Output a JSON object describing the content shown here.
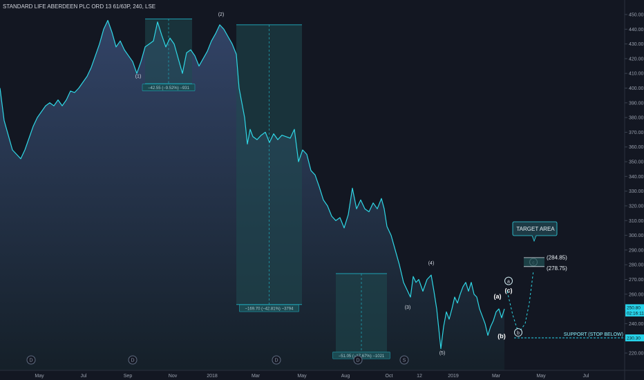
{
  "header": {
    "title": "STANDARD LIFE ABERDEEN PLC ORD 13 61/63P, 240, LSE"
  },
  "colors": {
    "background": "#131722",
    "line": "#2fd8e6",
    "area_top": "#2b3a55",
    "area_bottom": "#16202b",
    "box_fill": "#1f4b50",
    "box_border": "#1fa3b4",
    "price_tag": "#27d3ea",
    "support": "#27d3ea"
  },
  "chart_data": {
    "type": "area",
    "y_axis": {
      "ticks": [
        220,
        230,
        240,
        250,
        260,
        270,
        280,
        290,
        300,
        310,
        320,
        330,
        340,
        350,
        360,
        370,
        380,
        390,
        400,
        410,
        420,
        430,
        440,
        450
      ],
      "tick_labels": [
        "220.00",
        "230.00",
        "240.00",
        "250.00",
        "260.00",
        "270.00",
        "280.00",
        "290.00",
        "300.00",
        "310.00",
        "320.00",
        "330.00",
        "340.00",
        "350.00",
        "360.00",
        "370.00",
        "380.00",
        "390.00",
        "400.00",
        "410.00",
        "420.00",
        "430.00",
        "440.00",
        "450.00"
      ],
      "range": [
        212,
        455
      ]
    },
    "x_axis": {
      "labels": [
        "May",
        "Jul",
        "Sep",
        "Nov",
        "2018",
        "Mar",
        "May",
        "Aug",
        "Oct",
        "12",
        "2019",
        "Mar",
        "May",
        "Jul"
      ]
    },
    "series": [
      {
        "values": [
          [
            0,
            400
          ],
          [
            6,
            378
          ],
          [
            12,
            368
          ],
          [
            18,
            358
          ],
          [
            24,
            355
          ],
          [
            30,
            352
          ],
          [
            36,
            358
          ],
          [
            42,
            366
          ],
          [
            48,
            374
          ],
          [
            54,
            380
          ],
          [
            60,
            384
          ],
          [
            66,
            388
          ],
          [
            72,
            390
          ],
          [
            78,
            388
          ],
          [
            84,
            392
          ],
          [
            90,
            388
          ],
          [
            96,
            392
          ],
          [
            102,
            398
          ],
          [
            108,
            397
          ],
          [
            114,
            400
          ],
          [
            120,
            404
          ],
          [
            126,
            408
          ],
          [
            132,
            414
          ],
          [
            138,
            422
          ],
          [
            144,
            430
          ],
          [
            150,
            440
          ],
          [
            156,
            446
          ],
          [
            162,
            438
          ],
          [
            168,
            428
          ],
          [
            174,
            432
          ],
          [
            180,
            426
          ],
          [
            186,
            422
          ],
          [
            192,
            418
          ],
          [
            198,
            410
          ],
          [
            204,
            418
          ],
          [
            210,
            428
          ],
          [
            216,
            430
          ],
          [
            222,
            432
          ],
          [
            228,
            445
          ],
          [
            234,
            436
          ],
          [
            240,
            428
          ],
          [
            246,
            434
          ],
          [
            252,
            430
          ],
          [
            258,
            420
          ],
          [
            264,
            410
          ],
          [
            270,
            424
          ],
          [
            276,
            426
          ],
          [
            282,
            422
          ],
          [
            288,
            415
          ],
          [
            294,
            420
          ],
          [
            300,
            425
          ],
          [
            306,
            432
          ],
          [
            312,
            437
          ],
          [
            318,
            443
          ],
          [
            324,
            440
          ],
          [
            330,
            435
          ],
          [
            336,
            430
          ],
          [
            342,
            423
          ],
          [
            346,
            400
          ],
          [
            350,
            390
          ],
          [
            354,
            380
          ],
          [
            358,
            362
          ],
          [
            362,
            372
          ],
          [
            366,
            367
          ],
          [
            372,
            365
          ],
          [
            378,
            368
          ],
          [
            384,
            370
          ],
          [
            390,
            363
          ],
          [
            396,
            369
          ],
          [
            402,
            365
          ],
          [
            408,
            368
          ],
          [
            414,
            367
          ],
          [
            420,
            366
          ],
          [
            426,
            372
          ],
          [
            432,
            350
          ],
          [
            438,
            358
          ],
          [
            444,
            355
          ],
          [
            450,
            344
          ],
          [
            456,
            341
          ],
          [
            462,
            333
          ],
          [
            468,
            324
          ],
          [
            474,
            320
          ],
          [
            480,
            313
          ],
          [
            486,
            310
          ],
          [
            492,
            312
          ],
          [
            498,
            305
          ],
          [
            504,
            314
          ],
          [
            510,
            332
          ],
          [
            516,
            318
          ],
          [
            522,
            324
          ],
          [
            528,
            318
          ],
          [
            534,
            316
          ],
          [
            540,
            322
          ],
          [
            546,
            318
          ],
          [
            552,
            325
          ],
          [
            556,
            318
          ],
          [
            560,
            306
          ],
          [
            566,
            300
          ],
          [
            572,
            290
          ],
          [
            578,
            280
          ],
          [
            584,
            268
          ],
          [
            590,
            262
          ],
          [
            594,
            258
          ],
          [
            598,
            272
          ],
          [
            602,
            268
          ],
          [
            606,
            270
          ],
          [
            612,
            262
          ],
          [
            618,
            270
          ],
          [
            624,
            273
          ],
          [
            628,
            262
          ],
          [
            632,
            250
          ],
          [
            636,
            232
          ],
          [
            638,
            223
          ],
          [
            642,
            238
          ],
          [
            646,
            248
          ],
          [
            650,
            243
          ],
          [
            654,
            250
          ],
          [
            658,
            258
          ],
          [
            662,
            254
          ],
          [
            666,
            260
          ],
          [
            670,
            265
          ],
          [
            674,
            268
          ],
          [
            678,
            262
          ],
          [
            682,
            268
          ],
          [
            686,
            260
          ],
          [
            690,
            258
          ],
          [
            694,
            250
          ],
          [
            698,
            245
          ],
          [
            702,
            240
          ],
          [
            706,
            232
          ],
          [
            710,
            238
          ],
          [
            714,
            242
          ],
          [
            718,
            248
          ],
          [
            722,
            250
          ],
          [
            726,
            244
          ],
          [
            730,
            250
          ]
        ]
      }
    ],
    "wave_labels": [
      {
        "text": "(1)",
        "x": 200,
        "y": 407
      },
      {
        "text": "(2)",
        "x": 320,
        "y": 449
      },
      {
        "text": "(3)",
        "x": 590,
        "y": 250
      },
      {
        "text": "(4)",
        "x": 624,
        "y": 280
      },
      {
        "text": "(5)",
        "x": 640,
        "y": 219
      },
      {
        "text": "(a)",
        "x": 720,
        "y": 257,
        "emphasis": true
      },
      {
        "text": "(b)",
        "x": 726,
        "y": 230,
        "emphasis": true
      },
      {
        "text": "(c)",
        "x": 736,
        "y": 261,
        "emphasis": true
      }
    ],
    "circle_labels": [
      {
        "text": "a",
        "x": 736,
        "y": 269
      },
      {
        "text": "b",
        "x": 750,
        "y": 234
      },
      {
        "text": "c",
        "x": 772,
        "y": 281.8
      }
    ],
    "projection": [
      [
        734,
        262
      ],
      [
        742,
        246
      ],
      [
        748,
        237
      ],
      [
        754,
        236
      ],
      [
        760,
        240
      ],
      [
        766,
        254
      ],
      [
        772,
        276
      ]
    ],
    "measure_boxes": [
      {
        "x0": 210,
        "x1": 278,
        "y0": 403,
        "y1": 447,
        "label": "−42.55 (−9.52%) −931",
        "label_y": 400
      },
      {
        "x0": 342,
        "x1": 437,
        "y0": 253,
        "y1": 443,
        "label": "−169.70 (−42.81%) −3794",
        "label_y": 250
      },
      {
        "x0": 486,
        "x1": 560,
        "y0": 220,
        "y1": 274,
        "label": "−51.05 (−17.67%) −1021",
        "label_y": 218
      }
    ],
    "target": {
      "label": "TARGET AREA",
      "zone_top": 284.85,
      "zone_bottom": 278.75,
      "top_label": "(284.85)",
      "bottom_label": "(278.75)"
    },
    "support": {
      "label": "SUPPORT (STOP BELOW)",
      "price": 230.3,
      "price_label": "230.30"
    },
    "price_tags": [
      {
        "label": "250.80",
        "price": 250.8
      },
      {
        "label": "02:16:11",
        "price": 247.2
      }
    ],
    "event_markers": [
      {
        "text": "D",
        "x": 45
      },
      {
        "text": "D",
        "x": 192
      },
      {
        "text": "D",
        "x": 400
      },
      {
        "text": "D",
        "x": 518
      },
      {
        "text": "S",
        "x": 585
      }
    ]
  }
}
